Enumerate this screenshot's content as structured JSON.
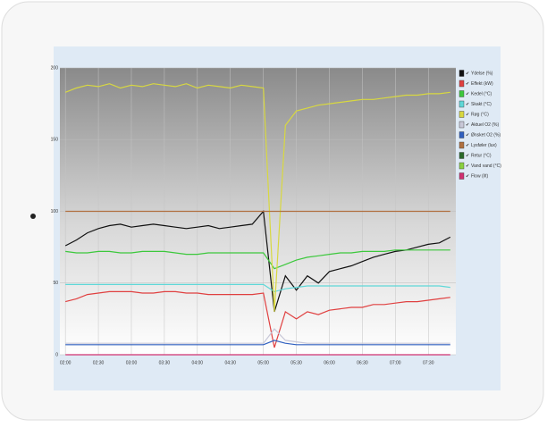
{
  "chart_data": {
    "type": "line",
    "x": [
      "02:00",
      null,
      null,
      "02:30",
      null,
      null,
      "03:00",
      null,
      null,
      "03:30",
      null,
      null,
      "04:00",
      null,
      null,
      "04:30",
      null,
      null,
      "05:00",
      null,
      null,
      "05:30",
      null,
      null,
      "06:00",
      null,
      null,
      "06:30",
      null,
      null,
      "07:00",
      null,
      null,
      "07:30",
      null,
      null
    ],
    "ylim": [
      0,
      200
    ],
    "yticks": [
      0,
      50,
      100,
      150,
      200
    ],
    "grid": true,
    "legend": "right",
    "series": [
      {
        "name": "Ydelse (%)",
        "color": "#111111",
        "values": [
          76,
          80,
          85,
          88,
          90,
          91,
          89,
          90,
          91,
          90,
          89,
          88,
          89,
          90,
          88,
          89,
          90,
          91,
          100,
          30,
          55,
          45,
          55,
          50,
          58,
          60,
          62,
          65,
          68,
          70,
          72,
          73,
          75,
          77,
          78,
          82
        ]
      },
      {
        "name": "Effekt (kW)",
        "color": "#e04040",
        "values": [
          37,
          39,
          42,
          43,
          44,
          44,
          44,
          43,
          43,
          44,
          44,
          43,
          43,
          42,
          42,
          42,
          42,
          42,
          43,
          5,
          30,
          25,
          30,
          28,
          31,
          32,
          33,
          33,
          35,
          35,
          36,
          37,
          37,
          38,
          39,
          40
        ]
      },
      {
        "name": "Kedel (°C)",
        "color": "#3cc83c",
        "values": [
          72,
          71,
          71,
          72,
          72,
          71,
          71,
          72,
          72,
          72,
          71,
          70,
          70,
          71,
          71,
          71,
          71,
          71,
          71,
          60,
          63,
          66,
          68,
          69,
          70,
          71,
          71,
          72,
          72,
          72,
          73,
          73,
          73,
          73,
          73,
          73
        ]
      },
      {
        "name": "Skakt (°C)",
        "color": "#5fd8d8",
        "values": [
          49,
          49,
          49,
          49,
          49,
          49,
          49,
          49,
          49,
          49,
          49,
          49,
          49,
          49,
          49,
          49,
          49,
          49,
          49,
          44,
          46,
          47,
          48,
          48,
          48,
          48,
          48,
          48,
          48,
          48,
          48,
          48,
          48,
          48,
          48,
          47
        ]
      },
      {
        "name": "Røg (°C)",
        "color": "#d8d840",
        "values": [
          183,
          186,
          188,
          187,
          189,
          186,
          188,
          187,
          189,
          188,
          187,
          189,
          186,
          188,
          187,
          186,
          188,
          187,
          186,
          30,
          160,
          170,
          172,
          174,
          175,
          176,
          177,
          178,
          178,
          179,
          180,
          181,
          181,
          182,
          182,
          183
        ]
      },
      {
        "name": "Aktuel O2 (%)",
        "color": "#c8c8d8",
        "values": [
          8,
          8,
          8,
          8,
          8,
          8,
          8,
          8,
          8,
          8,
          8,
          8,
          8,
          8,
          8,
          8,
          8,
          8,
          8,
          18,
          10,
          9,
          8,
          8,
          8,
          8,
          8,
          8,
          8,
          8,
          8,
          8,
          8,
          8,
          8,
          8
        ]
      },
      {
        "name": "Ønsket O2 (%)",
        "color": "#3060c0",
        "values": [
          7,
          7,
          7,
          7,
          7,
          7,
          7,
          7,
          7,
          7,
          7,
          7,
          7,
          7,
          7,
          7,
          7,
          7,
          7,
          10,
          8,
          7,
          7,
          7,
          7,
          7,
          7,
          7,
          7,
          7,
          7,
          7,
          7,
          7,
          7,
          7
        ]
      },
      {
        "name": "Lysføler (lux)",
        "color": "#b07040",
        "values": [
          100,
          100,
          100,
          100,
          100,
          100,
          100,
          100,
          100,
          100,
          100,
          100,
          100,
          100,
          100,
          100,
          100,
          100,
          100,
          100,
          100,
          100,
          100,
          100,
          100,
          100,
          100,
          100,
          100,
          100,
          100,
          100,
          100,
          100,
          100,
          100
        ]
      },
      {
        "name": "Retur (°C)",
        "color": "#2a6a2a",
        "values": [
          null,
          null,
          null,
          null,
          null,
          null,
          null,
          null,
          null,
          null,
          null,
          null,
          null,
          null,
          null,
          null,
          null,
          null,
          null,
          null,
          null,
          null,
          null,
          null,
          null,
          null,
          null,
          null,
          null,
          null,
          null,
          null,
          null,
          null,
          null,
          null
        ]
      },
      {
        "name": "Vand vand (°C)",
        "color": "#8ad040",
        "values": [
          null,
          null,
          null,
          null,
          null,
          null,
          null,
          null,
          null,
          null,
          null,
          null,
          null,
          null,
          null,
          null,
          null,
          null,
          null,
          null,
          null,
          null,
          null,
          null,
          null,
          null,
          null,
          null,
          null,
          null,
          null,
          null,
          null,
          null,
          null,
          null
        ]
      },
      {
        "name": "Flow (l/t)",
        "color": "#d03070",
        "values": [
          0,
          0,
          0,
          0,
          0,
          0,
          0,
          0,
          0,
          0,
          0,
          0,
          0,
          0,
          0,
          0,
          0,
          0,
          0,
          0,
          0,
          0,
          0,
          0,
          0,
          0,
          0,
          0,
          0,
          0,
          0,
          0,
          0,
          0,
          0,
          0
        ]
      }
    ]
  }
}
